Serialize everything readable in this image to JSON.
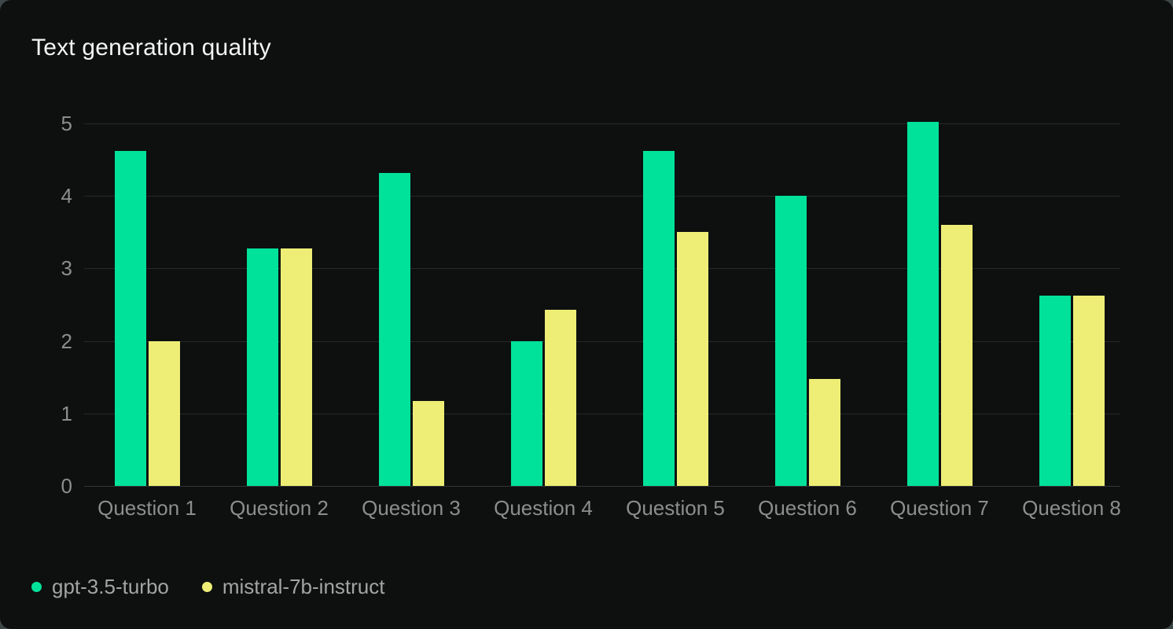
{
  "card": {
    "title": "Text generation quality"
  },
  "colors": {
    "card_background": "#0d100f",
    "page_background": "#3d4748",
    "gridline": "#272928",
    "axis_text": "#8d8d8d",
    "legend_text": "#a2a5a3",
    "title_text": "#f4f4f4",
    "series_green": "#00e29a",
    "series_yellow": "#eeee76"
  },
  "chart_data": {
    "type": "bar",
    "title": "Text generation quality",
    "categories": [
      "Question 1",
      "Question 2",
      "Question 3",
      "Question 4",
      "Question 5",
      "Question 6",
      "Question 7",
      "Question 8"
    ],
    "series": [
      {
        "name": "gpt-3.5-turbo",
        "color": "#00e29a",
        "values": [
          4.62,
          3.28,
          4.32,
          2.0,
          4.62,
          4.0,
          5.02,
          2.63
        ]
      },
      {
        "name": "mistral-7b-instruct",
        "color": "#eeee76",
        "values": [
          2.0,
          3.28,
          1.17,
          2.43,
          3.5,
          1.47,
          3.6,
          2.63
        ]
      }
    ],
    "xlabel": "",
    "ylabel": "",
    "ylim": [
      0,
      5
    ],
    "yticks": [
      0,
      1,
      2,
      3,
      4,
      5
    ],
    "grid": true,
    "legend_position": "bottom-left"
  }
}
